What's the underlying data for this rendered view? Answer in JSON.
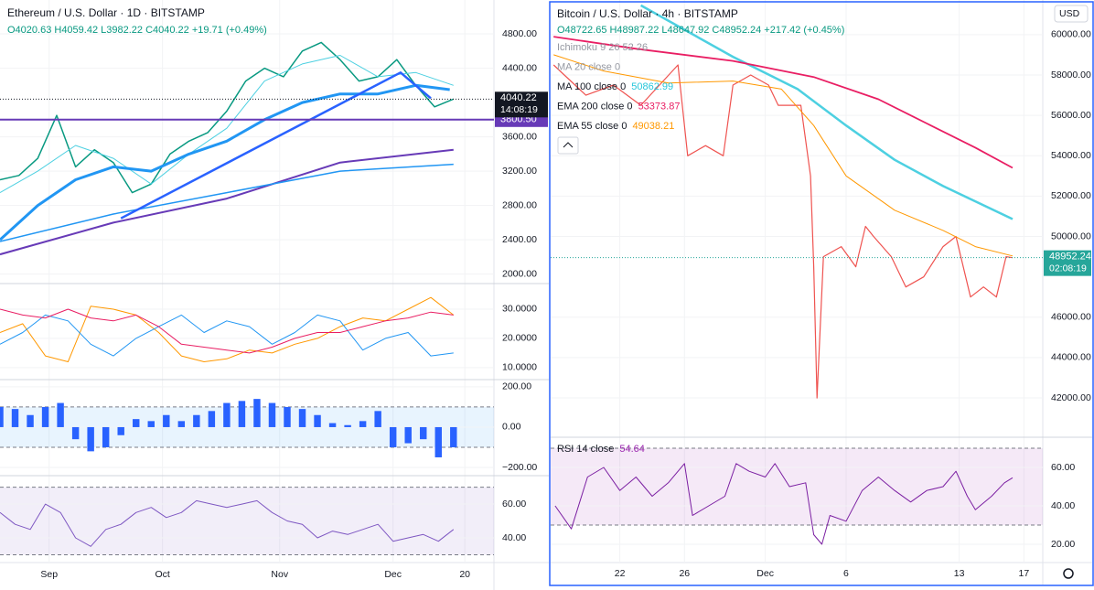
{
  "eth": {
    "title": "Ethereum / U.S. Dollar · 1D · BITSTAMP",
    "ohlc": "O4020.63 H4059.42 L3982.22 C4040.22 +19.71 (+0.49%)",
    "xlim": [
      0,
      130.7
    ],
    "xticks": [
      {
        "value": 13,
        "label": "Sep"
      },
      {
        "value": 43,
        "label": "Oct"
      },
      {
        "value": 74,
        "label": "Nov"
      },
      {
        "value": 104,
        "label": "Dec"
      },
      {
        "value": 123,
        "label": "20"
      }
    ],
    "panes": [
      {
        "ylim": [
          1890,
          5195
        ],
        "yticks": [
          {
            "value": 4800,
            "label": "4800.00"
          },
          {
            "value": 4400,
            "label": "4400.00"
          },
          {
            "value": 3600,
            "label": "3600.00"
          },
          {
            "value": 3200,
            "label": "3200.00"
          },
          {
            "value": 2800,
            "label": "2800.00"
          },
          {
            "value": 2400,
            "label": "2400.00"
          },
          {
            "value": 2000,
            "label": "2000.00"
          }
        ],
        "last": 4040.22,
        "timer": "14:08:19",
        "level": {
          "value": 3800.5,
          "label": "3800.50"
        },
        "lines": [
          {
            "color": "#089981",
            "width": 1.5,
            "x": [
              0,
              5,
              10,
              15,
              20,
              25,
              30,
              35,
              40,
              45,
              50,
              55,
              60,
              65,
              70,
              75,
              80,
              85,
              90,
              95,
              100,
              105,
              110,
              115,
              120
            ],
            "values": [
              3100,
              3150,
              3350,
              3850,
              3250,
              3450,
              3300,
              2950,
              3050,
              3400,
              3550,
              3650,
              3900,
              4250,
              4400,
              4300,
              4600,
              4700,
              4500,
              4250,
              4300,
              4500,
              4200,
              3950,
              4040
            ]
          },
          {
            "color": "#4dd0e1",
            "width": 1,
            "x": [
              0,
              10,
              20,
              30,
              40,
              50,
              60,
              70,
              80,
              90,
              100,
              110,
              120
            ],
            "values": [
              2950,
              3200,
              3500,
              3350,
              3050,
              3400,
              3700,
              4250,
              4450,
              4550,
              4300,
              4350,
              4200
            ]
          },
          {
            "color": "#2196f3",
            "width": 3,
            "x": [
              0,
              10,
              20,
              30,
              40,
              50,
              60,
              70,
              80,
              90,
              100,
              110,
              119
            ],
            "values": [
              2400,
              2800,
              3100,
              3250,
              3200,
              3400,
              3550,
              3800,
              4000,
              4100,
              4100,
              4200,
              4150
            ]
          },
          {
            "color": "#673ab7",
            "width": 2,
            "x": [
              0,
              30,
              60,
              90,
              120
            ],
            "values": [
              2230,
              2600,
              2880,
              3300,
              3450
            ]
          },
          {
            "color": "#2196f3",
            "width": 1.5,
            "x": [
              0,
              30,
              60,
              90,
              120
            ],
            "values": [
              2380,
              2700,
              2950,
              3200,
              3280
            ]
          },
          {
            "color": "#2962ff",
            "width": 2.5,
            "x": [
              32,
              106,
              114
            ],
            "values": [
              2650,
              4350,
              4050
            ]
          }
        ]
      },
      {
        "ylim": [
          5.9,
          38.75
        ],
        "yticks": [
          {
            "value": 30,
            "label": "30.0000"
          },
          {
            "value": 20,
            "label": "20.0000"
          },
          {
            "value": 10,
            "label": "10.0000"
          }
        ],
        "lines": [
          {
            "color": "#ff9800",
            "width": 1,
            "x": [
              0,
              6,
              12,
              18,
              24,
              30,
              36,
              42,
              48,
              54,
              60,
              66,
              72,
              78,
              84,
              90,
              96,
              102,
              108,
              114,
              120
            ],
            "values": [
              22,
              25,
              14,
              12,
              31,
              30,
              28,
              22,
              14,
              12,
              13,
              16,
              15,
              18,
              20,
              24,
              27,
              26,
              30,
              34,
              28
            ]
          },
          {
            "color": "#2196f3",
            "width": 1,
            "x": [
              0,
              6,
              12,
              18,
              24,
              30,
              36,
              42,
              48,
              54,
              60,
              66,
              72,
              78,
              84,
              90,
              96,
              102,
              108,
              114,
              120
            ],
            "values": [
              18,
              22,
              28,
              26,
              18,
              14,
              20,
              24,
              28,
              22,
              26,
              24,
              18,
              22,
              28,
              26,
              16,
              20,
              22,
              14,
              15
            ]
          },
          {
            "color": "#e91e63",
            "width": 1,
            "x": [
              0,
              6,
              12,
              18,
              24,
              30,
              36,
              42,
              48,
              54,
              60,
              66,
              72,
              78,
              84,
              90,
              96,
              102,
              108,
              114,
              120
            ],
            "values": [
              30,
              28,
              27,
              30,
              27,
              26,
              28,
              24,
              18,
              17,
              16,
              15,
              17,
              20,
              22,
              22,
              24,
              26,
              27,
              29,
              28
            ]
          }
        ]
      },
      {
        "ylim": [
          -241,
          236
        ],
        "yticks": [
          {
            "value": 200,
            "label": "200.00"
          },
          {
            "value": 0,
            "label": "0.00"
          },
          {
            "value": -200,
            "label": "−200.00"
          }
        ],
        "band": [
          -100,
          100
        ],
        "band_color": "#2196f3",
        "bars": {
          "color": "#2962ff",
          "x": [
            0,
            4,
            8,
            12,
            16,
            20,
            24,
            28,
            32,
            36,
            40,
            44,
            48,
            52,
            56,
            60,
            64,
            68,
            72,
            76,
            80,
            84,
            88,
            92,
            96,
            100,
            104,
            108,
            112,
            116,
            120
          ],
          "values": [
            100,
            90,
            60,
            100,
            120,
            -60,
            -120,
            -100,
            -40,
            40,
            30,
            60,
            30,
            60,
            80,
            120,
            130,
            140,
            120,
            100,
            90,
            60,
            20,
            10,
            30,
            80,
            -100,
            -80,
            -60,
            -150,
            -100
          ]
        }
      },
      {
        "ylim": [
          25.4,
          76.8
        ],
        "yticks": [
          {
            "value": 60,
            "label": "60.00"
          },
          {
            "value": 40,
            "label": "40.00"
          }
        ],
        "band": [
          30,
          70
        ],
        "band_color": "#7e57c2",
        "lines": [
          {
            "color": "#7e57c2",
            "width": 1,
            "x": [
              0,
              4,
              8,
              12,
              16,
              20,
              24,
              28,
              32,
              36,
              40,
              44,
              48,
              52,
              56,
              60,
              64,
              68,
              72,
              76,
              80,
              84,
              88,
              92,
              96,
              100,
              104,
              108,
              112,
              116,
              120
            ],
            "values": [
              55,
              48,
              45,
              60,
              55,
              40,
              35,
              45,
              48,
              55,
              58,
              52,
              55,
              62,
              60,
              58,
              60,
              62,
              55,
              50,
              48,
              40,
              44,
              42,
              45,
              48,
              38,
              40,
              42,
              38,
              45
            ]
          }
        ]
      }
    ]
  },
  "btc": {
    "title": "Bitcoin / U.S. Dollar · 4h · BITSTAMP",
    "ohlc": "O48722.65 H48987.22 L48647.92 C48952.24 +217.42 (+0.45%)",
    "currency": "USD",
    "legends": [
      {
        "name": "Ichimoku 9 26 52 26"
      },
      {
        "name": "MA 20 close 0"
      },
      {
        "name": "MA 100 close 0",
        "value": 50862.99,
        "color": "#26c6da"
      },
      {
        "name": "EMA 200 close 0",
        "value": 53373.87,
        "color": "#e91e63"
      },
      {
        "name": "EMA 55 close 0",
        "value": 49038.21,
        "color": "#ff9800"
      }
    ],
    "xlim": [
      16.72,
      47.17
    ],
    "xticks": [
      {
        "value": 21,
        "label": "22"
      },
      {
        "value": 25,
        "label": "26"
      },
      {
        "value": 30,
        "label": "Dec"
      },
      {
        "value": 35,
        "label": "6"
      },
      {
        "value": 42,
        "label": "13"
      },
      {
        "value": 46,
        "label": "17"
      }
    ],
    "panes": [
      {
        "ylim": [
          40190,
          61580
        ],
        "yticks": [
          {
            "value": 60000,
            "label": "60000.00"
          },
          {
            "value": 58000,
            "label": "58000.00"
          },
          {
            "value": 56000,
            "label": "56000.00"
          },
          {
            "value": 54000,
            "label": "54000.00"
          },
          {
            "value": 52000,
            "label": "52000.00"
          },
          {
            "value": 50000,
            "label": "50000.00"
          },
          {
            "value": 46000,
            "label": "46000.00"
          },
          {
            "value": 44000,
            "label": "44000.00"
          },
          {
            "value": 42000,
            "label": "42000.00"
          }
        ],
        "last": 48952.24,
        "timer": "02:08:19",
        "lines": [
          {
            "color": "#ef5350",
            "width": 1.2,
            "x": [
              16.9,
              18.9,
              20.6,
              22.3,
              24.6,
              25.2,
              26.3,
              27.4,
              28.0,
              29.1,
              30.2,
              30.8,
              32.2,
              32.8,
              33.0,
              33.2,
              33.6,
              34.7,
              35.6,
              36.2,
              36.7,
              37.8,
              38.7,
              39.8,
              41.0,
              41.8,
              42.7,
              43.5,
              44.3,
              44.9,
              45.3
            ],
            "values": [
              58500,
              57000,
              57500,
              56500,
              58500,
              54000,
              54500,
              54000,
              57500,
              58000,
              57500,
              56500,
              56500,
              53000,
              48500,
              42000,
              49000,
              49500,
              48500,
              50500,
              50000,
              49000,
              47500,
              48000,
              49500,
              50000,
              47000,
              47500,
              47000,
              49000,
              48950
            ]
          },
          {
            "color": "#ff9800",
            "width": 1,
            "x": [
              16.9,
              20,
              24,
              28,
              31,
              33,
              35,
              38,
              41,
              43,
              45.3
            ],
            "values": [
              59000,
              58200,
              57600,
              57700,
              57300,
              55500,
              53000,
              51300,
              50300,
              49500,
              49038
            ]
          },
          {
            "color": "#4dd0e1",
            "width": 2.5,
            "x": [
              22.3,
              28,
              32,
              35,
              38,
              41,
              45.3
            ],
            "values": [
              61450,
              58900,
              57300,
              55500,
              53800,
              52500,
              50863
            ]
          },
          {
            "color": "#e91e63",
            "width": 1.8,
            "x": [
              16.9,
              22,
              28,
              33,
              37,
              40,
              43,
              45.3
            ],
            "values": [
              59900,
              59300,
              58700,
              57900,
              56800,
              55600,
              54400,
              53400
            ]
          }
        ]
      },
      {
        "ylim": [
          10.5,
          75.7
        ],
        "yticks": [
          {
            "value": 60,
            "label": "60.00"
          },
          {
            "value": 40,
            "label": "40.00"
          },
          {
            "value": 20,
            "label": "20.00"
          }
        ],
        "band": [
          30,
          70
        ],
        "band_color": "#9c27b0",
        "legend": "RSI 14 close",
        "legend_value": 54.64,
        "lines": [
          {
            "color": "#7b1fa2",
            "width": 1,
            "x": [
              17,
              18,
              19,
              20,
              21,
              22,
              23,
              24,
              25,
              25.5,
              26.5,
              27.5,
              28.2,
              29,
              30,
              30.6,
              31.5,
              32.5,
              33,
              33.5,
              34,
              35,
              36,
              37,
              38,
              39,
              40,
              41,
              41.8,
              42.5,
              43,
              44,
              44.8,
              45.3
            ],
            "values": [
              40,
              28,
              55,
              60,
              48,
              55,
              45,
              52,
              62,
              35,
              40,
              45,
              62,
              58,
              55,
              62,
              50,
              52,
              25,
              20,
              35,
              32,
              48,
              55,
              48,
              42,
              48,
              50,
              58,
              45,
              38,
              45,
              52,
              54.64
            ]
          }
        ]
      }
    ]
  }
}
